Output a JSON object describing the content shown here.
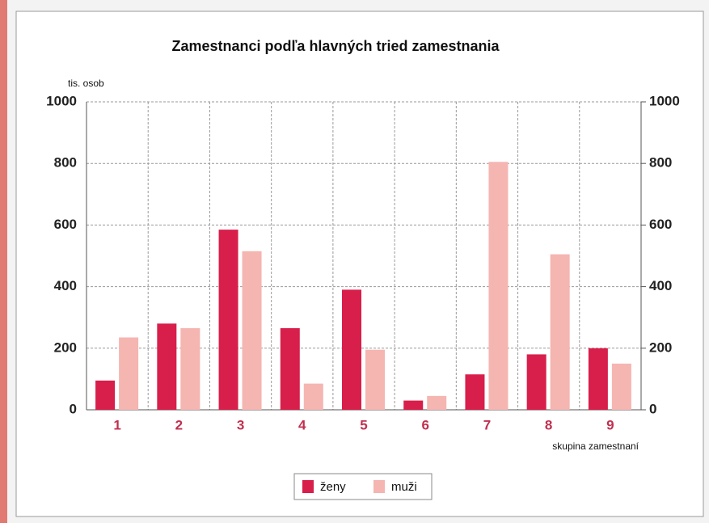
{
  "chart_data": {
    "type": "bar",
    "title": "Zamestnanci podľa hlavných tried zamestnania",
    "y_label": "tis. osob",
    "x_label": "skupina zamestnaní",
    "categories": [
      "1",
      "2",
      "3",
      "4",
      "5",
      "6",
      "7",
      "8",
      "9"
    ],
    "series": [
      {
        "name": "ženy",
        "color": "#d81e4a",
        "values": [
          95,
          280,
          585,
          265,
          390,
          30,
          115,
          180,
          200
        ]
      },
      {
        "name": "muži",
        "color": "#f5b5b1",
        "values": [
          235,
          265,
          515,
          85,
          195,
          45,
          805,
          505,
          150
        ]
      }
    ],
    "ylim": [
      0,
      1000
    ],
    "yticks": [
      0,
      200,
      400,
      600,
      800,
      1000
    ],
    "y2lim": [
      0,
      1000
    ],
    "y2ticks": [
      0,
      200,
      400,
      600,
      800,
      1000
    ],
    "grid": true,
    "legend": "bottom"
  }
}
